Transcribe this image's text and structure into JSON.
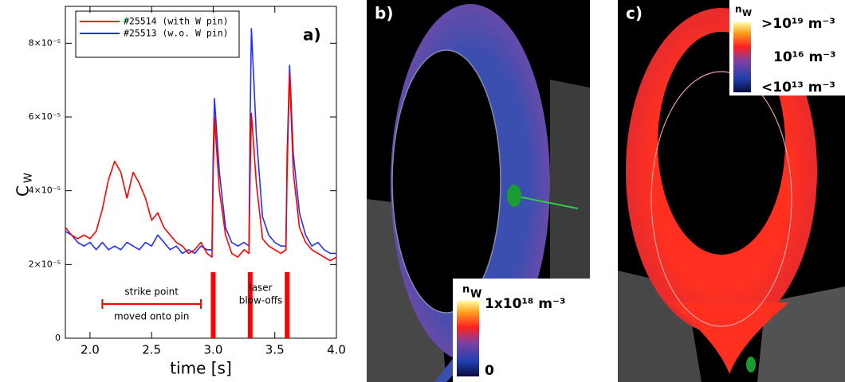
{
  "chart_data": {
    "type": "line",
    "ylabel": "C",
    "ylabel_subscript": "W",
    "xlabel": "time [s]",
    "x": [
      1.8,
      1.85,
      1.9,
      1.95,
      2.0,
      2.05,
      2.1,
      2.15,
      2.2,
      2.25,
      2.3,
      2.35,
      2.4,
      2.45,
      2.5,
      2.55,
      2.6,
      2.65,
      2.7,
      2.75,
      2.8,
      2.85,
      2.9,
      2.95,
      2.99,
      3.0,
      3.01,
      3.05,
      3.1,
      3.15,
      3.2,
      3.25,
      3.29,
      3.3,
      3.31,
      3.35,
      3.4,
      3.45,
      3.5,
      3.55,
      3.59,
      3.6,
      3.62,
      3.65,
      3.7,
      3.75,
      3.8,
      3.85,
      3.9,
      3.95,
      4.0
    ],
    "series": [
      {
        "name": "#25514 (with W pin)",
        "color": "#ff0000",
        "values": [
          3e-05,
          2.8e-05,
          2.7e-05,
          2.8e-05,
          2.7e-05,
          2.9e-05,
          3.5e-05,
          4.3e-05,
          4.8e-05,
          4.5e-05,
          3.8e-05,
          4.5e-05,
          4.2e-05,
          3.8e-05,
          3.2e-05,
          3.4e-05,
          3e-05,
          2.8e-05,
          2.6e-05,
          2.5e-05,
          2.3e-05,
          2.4e-05,
          2.6e-05,
          2.3e-05,
          2.2e-05,
          4.5e-05,
          6e-05,
          4e-05,
          2.8e-05,
          2.3e-05,
          2.2e-05,
          2.4e-05,
          2.3e-05,
          4.5e-05,
          6.1e-05,
          4.2e-05,
          2.7e-05,
          2.5e-05,
          2.4e-05,
          2.3e-05,
          2.4e-05,
          4.5e-05,
          7.2e-05,
          4.5e-05,
          3e-05,
          2.6e-05,
          2.4e-05,
          2.3e-05,
          2.2e-05,
          2.1e-05,
          2.2e-05
        ]
      },
      {
        "name": "#25513 (w.o. W pin)",
        "color": "#2030ff",
        "values": [
          2.9e-05,
          2.8e-05,
          2.6e-05,
          2.5e-05,
          2.6e-05,
          2.4e-05,
          2.6e-05,
          2.4e-05,
          2.5e-05,
          2.4e-05,
          2.6e-05,
          2.5e-05,
          2.4e-05,
          2.6e-05,
          2.5e-05,
          2.8e-05,
          2.6e-05,
          2.4e-05,
          2.5e-05,
          2.3e-05,
          2.4e-05,
          2.3e-05,
          2.5e-05,
          2.4e-05,
          2.4e-05,
          5e-05,
          6.5e-05,
          4.5e-05,
          3e-05,
          2.6e-05,
          2.5e-05,
          2.6e-05,
          2.5e-05,
          6e-05,
          8.4e-05,
          5.5e-05,
          3.3e-05,
          2.8e-05,
          2.6e-05,
          2.5e-05,
          2.5e-05,
          5e-05,
          7.4e-05,
          5e-05,
          3.4e-05,
          2.8e-05,
          2.5e-05,
          2.6e-05,
          2.4e-05,
          2.3e-05,
          2.3e-05
        ]
      }
    ],
    "xlim": [
      1.8,
      4.0
    ],
    "xticks": [
      {
        "value": 2,
        "label": "2.0"
      },
      2.5,
      {
        "value": 3,
        "label": "3.0"
      },
      3.5,
      {
        "value": 4,
        "label": "4.0"
      }
    ],
    "ylim": [
      0,
      9e-05
    ],
    "yticks": [
      0,
      {
        "value": 2e-05,
        "label": "2×10⁻⁵"
      },
      {
        "value": 4e-05,
        "label": "4×10⁻⁵"
      },
      {
        "value": 6e-05,
        "label": "6×10⁻⁵"
      },
      {
        "value": 8e-05,
        "label": "8×10⁻⁵"
      }
    ],
    "legend": "top-left",
    "panel_label": "a)",
    "strike_point_range": [
      2.1,
      2.9
    ],
    "strike_text": [
      "strike point",
      "moved onto pin"
    ],
    "blowoff_times": [
      3.0,
      3.3,
      3.6
    ],
    "blowoff_text": [
      "laser",
      "blow-offs"
    ],
    "annotation_color": "#ff0000"
  },
  "panels": {
    "b": {
      "label": "b)",
      "symbol": "n",
      "symbol_sub": "W",
      "max_label": "1x10¹⁸ m⁻³",
      "min_label": "0"
    },
    "c": {
      "label": "c)",
      "symbol": "n",
      "symbol_sub": "W",
      "high_label": ">10¹⁹ m⁻³",
      "mid_label": "10¹⁶ m⁻³",
      "low_label": "<10¹³ m⁻³"
    }
  }
}
